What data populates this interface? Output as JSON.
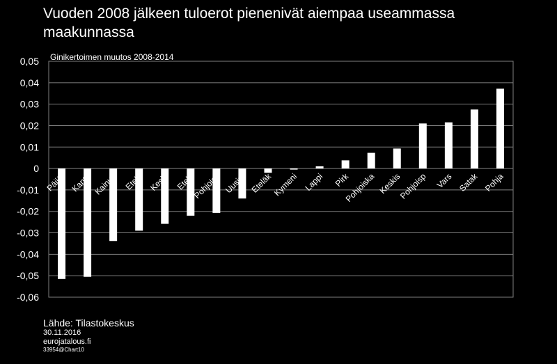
{
  "chart_data": {
    "type": "bar",
    "title": "Vuoden 2008 jälkeen tuloerot pienenivät aiempaa useammassa maakunnassa",
    "subtitle": "Ginikertoimen muutos 2008-2014",
    "categories": [
      "Päijät",
      "Kanta",
      "Kainuu",
      "Etelä",
      "Keski",
      "Etelä",
      "Pohjoiss",
      "Uusim",
      "Eteläk",
      "Kymeni",
      "Lappi",
      "Pirk",
      "Pohjoiska",
      "Keskis",
      "Pohjoisp",
      "Vars",
      "Satak",
      "Pohja"
    ],
    "values": [
      -0.0515,
      -0.0505,
      -0.0338,
      -0.029,
      -0.0258,
      -0.022,
      -0.0207,
      -0.014,
      -0.002,
      -0.0005,
      0.001,
      0.0038,
      0.0073,
      0.0093,
      0.021,
      0.0215,
      0.0275,
      0.0372
    ],
    "y_tick_labels": [
      "0,05",
      "0,04",
      "0,03",
      "0,02",
      "0,01",
      "0",
      "-0,01",
      "-0,02",
      "-0,03",
      "-0,04",
      "-0,05",
      "-0,06"
    ],
    "ylim": [
      -0.06,
      0.05
    ],
    "grid": true,
    "bar_color": "#ffffff",
    "background_color": "#000000"
  },
  "footer": {
    "source": "Lähde: Tilastokeskus",
    "date": "30.11.2016",
    "site": "eurojatalous.fi",
    "code": "33954@Chart10"
  }
}
